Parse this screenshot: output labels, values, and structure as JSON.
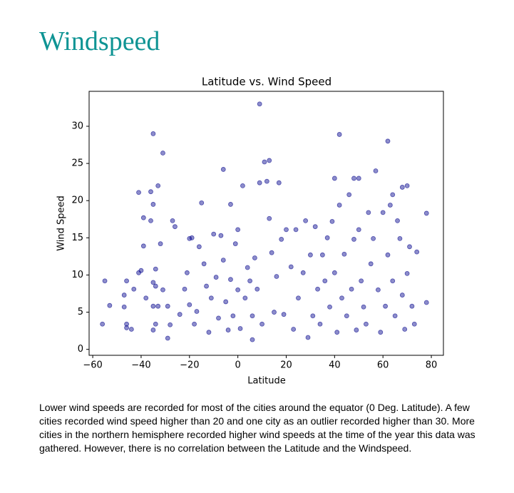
{
  "header": {
    "title": "Windspeed"
  },
  "chart_data": {
    "type": "scatter",
    "title": "Latitude vs. Wind Speed",
    "x_label": "Latitude",
    "y_label": "Wind Speed",
    "color": "#00008b",
    "alpha": 0.45,
    "xlim": [
      -61.5,
      85
    ],
    "ylim": [
      -0.8,
      34.7
    ],
    "xticks": [
      {
        "value": -60,
        "label": "−60"
      },
      {
        "value": -40,
        "label": "−40"
      },
      {
        "value": -20,
        "label": "−20"
      },
      0,
      20,
      40,
      60,
      80
    ],
    "yticks": [
      0,
      5,
      10,
      15,
      20,
      25,
      30
    ],
    "x": [
      -55,
      -53,
      -56,
      -46,
      -46,
      -44,
      -47,
      -47,
      -43,
      -46,
      -41,
      -41,
      -39,
      -39,
      -40,
      -38,
      -36,
      -35,
      -36,
      -35,
      -33,
      -35,
      -34,
      -34,
      -35,
      -34,
      -35,
      -33,
      -31,
      -32,
      -31,
      -29,
      -29,
      -28,
      -27,
      -26,
      -24,
      -22,
      -21,
      -20,
      -19,
      -20,
      -18,
      -17,
      -16,
      -15,
      -14,
      -13,
      -12,
      -11,
      -10,
      -9,
      -8,
      -7,
      -6,
      -6,
      -5,
      -4,
      -3,
      -3,
      -2,
      -1,
      0,
      0,
      1,
      2,
      3,
      4,
      5,
      6,
      6,
      7,
      8,
      9,
      9,
      10,
      11,
      12,
      13,
      13,
      14,
      15,
      16,
      17,
      18,
      19,
      20,
      22,
      23,
      24,
      25,
      27,
      28,
      29,
      30,
      31,
      32,
      33,
      34,
      35,
      36,
      37,
      38,
      39,
      40,
      40,
      41,
      42,
      42,
      43,
      44,
      45,
      46,
      47,
      48,
      48,
      49,
      50,
      50,
      51,
      52,
      53,
      54,
      55,
      56,
      57,
      58,
      59,
      60,
      61,
      62,
      62,
      63,
      64,
      64,
      65,
      66,
      67,
      68,
      68,
      69,
      70,
      70,
      71,
      72,
      73,
      74,
      78,
      78
    ],
    "y": [
      9.2,
      5.9,
      3.4,
      3.4,
      2.9,
      2.7,
      5.7,
      7.3,
      8.1,
      9.2,
      10.3,
      21.1,
      13.9,
      17.7,
      10.6,
      6.9,
      17.3,
      19.5,
      21.2,
      29,
      22,
      9,
      8.5,
      10.8,
      5.8,
      3.4,
      2.6,
      5.8,
      26.4,
      14.2,
      8,
      5.8,
      1.5,
      3.3,
      17.3,
      16.5,
      4.7,
      8.1,
      10.3,
      14.9,
      15,
      6,
      3.4,
      5.1,
      13.8,
      19.7,
      11.5,
      8.5,
      2.3,
      6.9,
      15.5,
      9.7,
      4.2,
      15.3,
      24.2,
      12,
      6.4,
      2.6,
      19.5,
      9.4,
      4.5,
      14.2,
      16.1,
      8,
      2.8,
      22,
      6.9,
      11,
      9.2,
      4.5,
      1.3,
      12.3,
      8.1,
      33,
      22.4,
      3.4,
      25.2,
      22.6,
      25.4,
      17.6,
      13,
      5,
      9.8,
      22.4,
      14.8,
      4.7,
      16.1,
      11.1,
      2.7,
      16.1,
      6.9,
      10.3,
      17.3,
      1.6,
      12.7,
      4.5,
      16.5,
      8.1,
      3.4,
      12.7,
      9.2,
      15,
      5.7,
      17.2,
      23,
      10.3,
      2.3,
      28.9,
      19.4,
      6.9,
      12.8,
      4.5,
      20.8,
      8.1,
      23,
      14.8,
      2.6,
      23,
      16.1,
      9.2,
      5.7,
      3.4,
      18.4,
      11.5,
      14.9,
      24,
      8,
      2.3,
      18.4,
      5.8,
      28,
      12.7,
      19.4,
      20.8,
      9.2,
      4.5,
      17.3,
      14.9,
      21.8,
      7.3,
      2.7,
      22,
      10.2,
      13.8,
      5.8,
      3.4,
      13.1,
      18.3,
      6.3
    ]
  },
  "paragraph": "Lower wind speeds are recorded for most of the cities around the equator (0 Deg. Latitude). A few cities recorded wind speed higher than 20 and one city as an outlier recorded higher than 30. More cities in the northern hemisphere recorded higher wind speeds at the time of the year this data was gathered. However, there is no correlation between the Latitude and the Windspeed."
}
